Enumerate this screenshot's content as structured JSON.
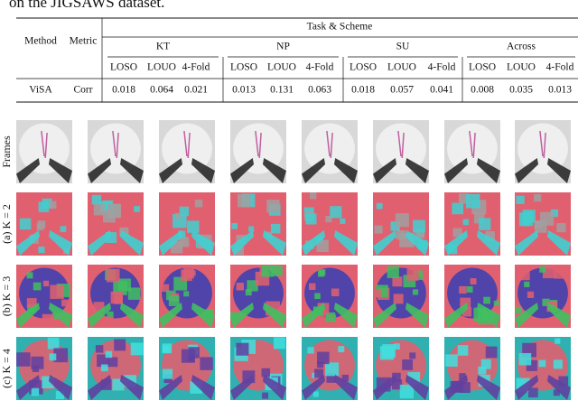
{
  "caption_fragment": "on the JIGSAWS dataset.",
  "table": {
    "headers": {
      "method": "Method",
      "metric": "Metric",
      "task_scheme": "Task & Scheme",
      "groups": [
        "KT",
        "NP",
        "SU",
        "Across"
      ],
      "schemes": [
        "LOSO",
        "LOUO",
        "4-Fold",
        "LOSO",
        "LOUO",
        "4-Fold",
        "LOSO",
        "LOUO",
        "4-Fold",
        "LOSO",
        "LOUO",
        "4-Fold"
      ]
    },
    "rows": [
      {
        "method": "ViSA",
        "metric": "Corr",
        "values": [
          "0.018",
          "0.064",
          "0.021",
          "0.013",
          "0.131",
          "0.063",
          "0.018",
          "0.057",
          "0.041",
          "0.008",
          "0.035",
          "0.013"
        ]
      }
    ]
  },
  "figure": {
    "rows": [
      "Frames",
      "(a) K = 2",
      "(b) K = 3",
      "(c) K = 4"
    ]
  }
}
